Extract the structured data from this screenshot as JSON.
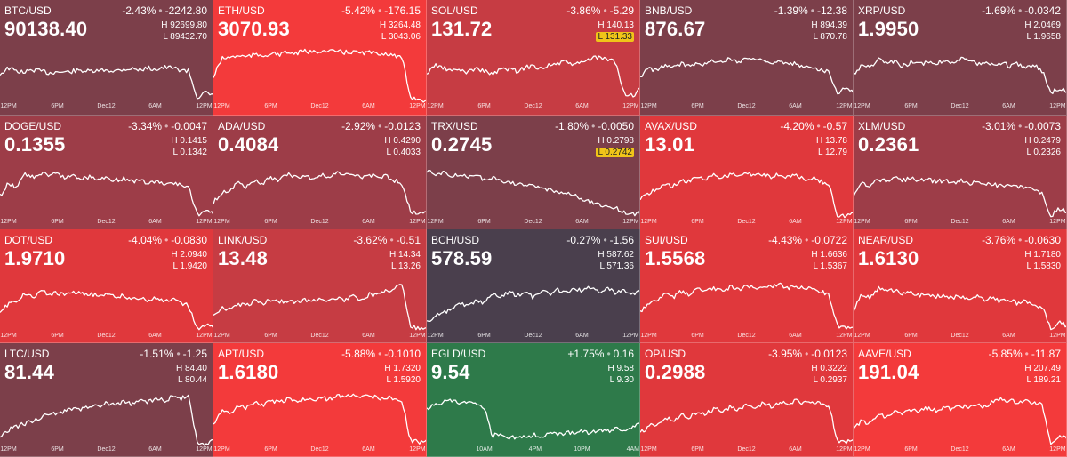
{
  "colors": {
    "deep_red": "#f33a3b",
    "red": "#e0383c",
    "mid_red": "#c63c43",
    "dark_red": "#9d3d48",
    "maroon": "#7c3f4a",
    "slate": "#4a3f4d",
    "green": "#2e7a4a"
  },
  "ticks_standard": [
    "12PM",
    "6PM",
    "Dec12",
    "6AM",
    "12PM"
  ],
  "ticks_egld": [
    "10AM",
    "4PM",
    "10PM",
    "4AM"
  ],
  "tiles": [
    {
      "symbol": "BTC/USD",
      "pct": "-2.43%",
      "abs": "-2242.80",
      "price": "90138.40",
      "high": "92699.80",
      "low": "89432.70",
      "color": "maroon",
      "trend": [
        0.55,
        0.45,
        0.5,
        0.52,
        0.48,
        0.5,
        0.53,
        0.51,
        0.52,
        0.5,
        0.49,
        0.51,
        0.5,
        0.48,
        0.5,
        0.47,
        0.46,
        0.48,
        0.45,
        0.47,
        0.44,
        0.45,
        0.48,
        0.5,
        0.92,
        0.85,
        0.9
      ]
    },
    {
      "symbol": "ETH/USD",
      "pct": "-5.42%",
      "abs": "-176.15",
      "price": "3070.93",
      "high": "3264.48",
      "low": "3043.06",
      "color": "deep_red",
      "trend": [
        0.6,
        0.3,
        0.28,
        0.25,
        0.27,
        0.24,
        0.25,
        0.22,
        0.23,
        0.2,
        0.22,
        0.18,
        0.2,
        0.17,
        0.19,
        0.18,
        0.2,
        0.19,
        0.21,
        0.2,
        0.22,
        0.21,
        0.25,
        0.3,
        0.92,
        0.95,
        0.98
      ]
    },
    {
      "symbol": "SOL/USD",
      "pct": "-3.86%",
      "abs": "-5.29",
      "price": "131.72",
      "high": "140.13",
      "low": "131.33",
      "color": "mid_red",
      "low_mark": true,
      "trend": [
        0.55,
        0.4,
        0.45,
        0.5,
        0.48,
        0.52,
        0.45,
        0.5,
        0.55,
        0.48,
        0.46,
        0.5,
        0.44,
        0.42,
        0.45,
        0.4,
        0.38,
        0.35,
        0.4,
        0.36,
        0.3,
        0.28,
        0.32,
        0.35,
        0.85,
        0.9,
        0.8
      ]
    },
    {
      "symbol": "BNB/USD",
      "pct": "-1.39%",
      "abs": "-12.38",
      "price": "876.67",
      "high": "894.39",
      "low": "870.78",
      "color": "maroon",
      "trend": [
        0.6,
        0.45,
        0.5,
        0.4,
        0.45,
        0.38,
        0.42,
        0.35,
        0.4,
        0.32,
        0.36,
        0.3,
        0.35,
        0.28,
        0.32,
        0.3,
        0.38,
        0.35,
        0.4,
        0.38,
        0.45,
        0.42,
        0.48,
        0.5,
        0.85,
        0.78,
        0.82
      ]
    },
    {
      "symbol": "XRP/USD",
      "pct": "-1.69%",
      "abs": "-0.0342",
      "price": "1.9950",
      "high": "2.0469",
      "low": "1.9658",
      "color": "maroon",
      "trend": [
        0.55,
        0.4,
        0.45,
        0.3,
        0.38,
        0.35,
        0.42,
        0.36,
        0.4,
        0.35,
        0.38,
        0.32,
        0.36,
        0.3,
        0.34,
        0.38,
        0.35,
        0.4,
        0.36,
        0.42,
        0.38,
        0.44,
        0.4,
        0.5,
        0.85,
        0.78,
        0.82
      ]
    },
    {
      "symbol": "DOGE/USD",
      "pct": "-3.34%",
      "abs": "-0.0047",
      "price": "0.1355",
      "high": "0.1415",
      "low": "0.1342",
      "color": "dark_red",
      "trend": [
        0.65,
        0.45,
        0.5,
        0.3,
        0.35,
        0.28,
        0.32,
        0.3,
        0.35,
        0.33,
        0.36,
        0.34,
        0.38,
        0.35,
        0.4,
        0.37,
        0.42,
        0.4,
        0.44,
        0.42,
        0.46,
        0.44,
        0.48,
        0.5,
        0.95,
        0.9,
        0.92
      ]
    },
    {
      "symbol": "ADA/USD",
      "pct": "-2.92%",
      "abs": "-0.0123",
      "price": "0.4084",
      "high": "0.4290",
      "low": "0.4033",
      "color": "dark_red",
      "trend": [
        0.75,
        0.6,
        0.55,
        0.45,
        0.5,
        0.4,
        0.45,
        0.35,
        0.4,
        0.3,
        0.35,
        0.32,
        0.38,
        0.3,
        0.35,
        0.28,
        0.32,
        0.3,
        0.35,
        0.3,
        0.36,
        0.32,
        0.4,
        0.45,
        0.9,
        0.92,
        0.88
      ]
    },
    {
      "symbol": "TRX/USD",
      "pct": "-1.80%",
      "abs": "-0.0050",
      "price": "0.2745",
      "high": "0.2798",
      "low": "0.2742",
      "color": "maroon",
      "low_mark": true,
      "trend": [
        0.25,
        0.3,
        0.28,
        0.32,
        0.3,
        0.35,
        0.33,
        0.38,
        0.36,
        0.4,
        0.42,
        0.45,
        0.48,
        0.5,
        0.52,
        0.55,
        0.58,
        0.6,
        0.65,
        0.7,
        0.75,
        0.8,
        0.82,
        0.85,
        0.9,
        0.95,
        0.92
      ]
    },
    {
      "symbol": "AVAX/USD",
      "pct": "-4.20%",
      "abs": "-0.57",
      "price": "13.01",
      "high": "13.78",
      "low": "12.79",
      "color": "red",
      "trend": [
        0.7,
        0.6,
        0.55,
        0.45,
        0.5,
        0.4,
        0.42,
        0.35,
        0.38,
        0.32,
        0.35,
        0.3,
        0.33,
        0.28,
        0.32,
        0.3,
        0.34,
        0.3,
        0.35,
        0.32,
        0.38,
        0.35,
        0.42,
        0.45,
        0.95,
        0.98,
        0.9
      ]
    },
    {
      "symbol": "XLM/USD",
      "pct": "-3.01%",
      "abs": "-0.0073",
      "price": "0.2361",
      "high": "0.2479",
      "low": "0.2326",
      "color": "dark_red",
      "trend": [
        0.65,
        0.45,
        0.5,
        0.38,
        0.42,
        0.35,
        0.4,
        0.36,
        0.4,
        0.38,
        0.42,
        0.4,
        0.44,
        0.4,
        0.45,
        0.42,
        0.48,
        0.45,
        0.5,
        0.48,
        0.52,
        0.5,
        0.55,
        0.6,
        0.98,
        0.85,
        0.9
      ]
    },
    {
      "symbol": "DOT/USD",
      "pct": "-4.04%",
      "abs": "-0.0830",
      "price": "1.9710",
      "high": "2.0940",
      "low": "1.9420",
      "color": "red",
      "trend": [
        0.7,
        0.55,
        0.5,
        0.4,
        0.45,
        0.35,
        0.4,
        0.38,
        0.42,
        0.36,
        0.4,
        0.38,
        0.44,
        0.4,
        0.45,
        0.42,
        0.48,
        0.44,
        0.5,
        0.46,
        0.52,
        0.48,
        0.55,
        0.58,
        0.95,
        0.9,
        0.92
      ]
    },
    {
      "symbol": "LINK/USD",
      "pct": "-3.62%",
      "abs": "-0.51",
      "price": "13.48",
      "high": "14.34",
      "low": "13.26",
      "color": "mid_red",
      "trend": [
        0.75,
        0.6,
        0.65,
        0.55,
        0.58,
        0.5,
        0.55,
        0.48,
        0.52,
        0.5,
        0.54,
        0.48,
        0.52,
        0.45,
        0.5,
        0.46,
        0.5,
        0.44,
        0.48,
        0.4,
        0.42,
        0.35,
        0.3,
        0.25,
        0.9,
        0.95,
        0.92
      ]
    },
    {
      "symbol": "BCH/USD",
      "pct": "-0.27%",
      "abs": "-1.56",
      "price": "578.59",
      "high": "587.62",
      "low": "571.36",
      "color": "slate",
      "trend": [
        0.85,
        0.75,
        0.7,
        0.65,
        0.55,
        0.6,
        0.5,
        0.55,
        0.4,
        0.45,
        0.35,
        0.42,
        0.38,
        0.45,
        0.35,
        0.4,
        0.32,
        0.38,
        0.3,
        0.35,
        0.28,
        0.35,
        0.3,
        0.38,
        0.32,
        0.4,
        0.35
      ]
    },
    {
      "symbol": "SUI/USD",
      "pct": "-4.43%",
      "abs": "-0.0722",
      "price": "1.5568",
      "high": "1.6636",
      "low": "1.5367",
      "color": "red",
      "trend": [
        0.7,
        0.55,
        0.5,
        0.4,
        0.45,
        0.35,
        0.4,
        0.32,
        0.36,
        0.3,
        0.34,
        0.28,
        0.32,
        0.26,
        0.3,
        0.25,
        0.28,
        0.24,
        0.3,
        0.26,
        0.32,
        0.3,
        0.35,
        0.4,
        0.9,
        0.95,
        0.92
      ]
    },
    {
      "symbol": "NEAR/USD",
      "pct": "-3.76%",
      "abs": "-0.0630",
      "price": "1.6130",
      "high": "1.7180",
      "low": "1.5830",
      "color": "red",
      "trend": [
        0.65,
        0.4,
        0.45,
        0.3,
        0.36,
        0.32,
        0.4,
        0.36,
        0.42,
        0.38,
        0.44,
        0.4,
        0.46,
        0.42,
        0.48,
        0.44,
        0.5,
        0.46,
        0.52,
        0.48,
        0.55,
        0.5,
        0.58,
        0.6,
        0.95,
        0.85,
        0.9
      ]
    },
    {
      "symbol": "LTC/USD",
      "pct": "-1.51%",
      "abs": "-1.25",
      "price": "81.44",
      "high": "84.40",
      "low": "80.44",
      "color": "maroon",
      "trend": [
        0.85,
        0.75,
        0.7,
        0.65,
        0.6,
        0.55,
        0.5,
        0.48,
        0.45,
        0.4,
        0.42,
        0.35,
        0.38,
        0.32,
        0.35,
        0.3,
        0.33,
        0.28,
        0.3,
        0.25,
        0.28,
        0.22,
        0.25,
        0.2,
        0.95,
        0.98,
        0.9
      ]
    },
    {
      "symbol": "APT/USD",
      "pct": "-5.88%",
      "abs": "-0.1010",
      "price": "1.6180",
      "high": "1.7320",
      "low": "1.5920",
      "color": "deep_red",
      "trend": [
        0.65,
        0.45,
        0.5,
        0.35,
        0.4,
        0.3,
        0.35,
        0.28,
        0.32,
        0.26,
        0.3,
        0.25,
        0.28,
        0.22,
        0.26,
        0.2,
        0.24,
        0.18,
        0.22,
        0.2,
        0.24,
        0.22,
        0.25,
        0.28,
        0.92,
        0.95,
        0.9
      ]
    },
    {
      "symbol": "EGLD/USD",
      "pct": "+1.75%",
      "abs": "0.16",
      "price": "9.54",
      "high": "9.58",
      "low": "9.30",
      "color": "green",
      "trend": [
        0.4,
        0.35,
        0.3,
        0.28,
        0.32,
        0.3,
        0.35,
        0.4,
        0.85,
        0.8,
        0.9,
        0.85,
        0.88,
        0.82,
        0.86,
        0.8,
        0.84,
        0.78,
        0.82,
        0.76,
        0.8,
        0.74,
        0.78,
        0.72,
        0.75,
        0.7,
        0.65
      ]
    },
    {
      "symbol": "OP/USD",
      "pct": "-3.95%",
      "abs": "-0.0123",
      "price": "0.2988",
      "high": "0.3222",
      "low": "0.2937",
      "color": "red",
      "trend": [
        0.8,
        0.7,
        0.65,
        0.55,
        0.6,
        0.5,
        0.55,
        0.45,
        0.5,
        0.4,
        0.45,
        0.38,
        0.42,
        0.35,
        0.4,
        0.32,
        0.38,
        0.3,
        0.35,
        0.28,
        0.32,
        0.3,
        0.34,
        0.35,
        0.92,
        0.95,
        0.9
      ]
    },
    {
      "symbol": "AAVE/USD",
      "pct": "-5.85%",
      "abs": "-11.87",
      "price": "191.04",
      "high": "207.49",
      "low": "189.21",
      "color": "deep_red",
      "trend": [
        0.75,
        0.6,
        0.65,
        0.5,
        0.55,
        0.45,
        0.5,
        0.42,
        0.46,
        0.4,
        0.44,
        0.38,
        0.42,
        0.35,
        0.4,
        0.34,
        0.38,
        0.3,
        0.25,
        0.28,
        0.3,
        0.28,
        0.32,
        0.35,
        0.95,
        0.85,
        0.9
      ]
    }
  ]
}
